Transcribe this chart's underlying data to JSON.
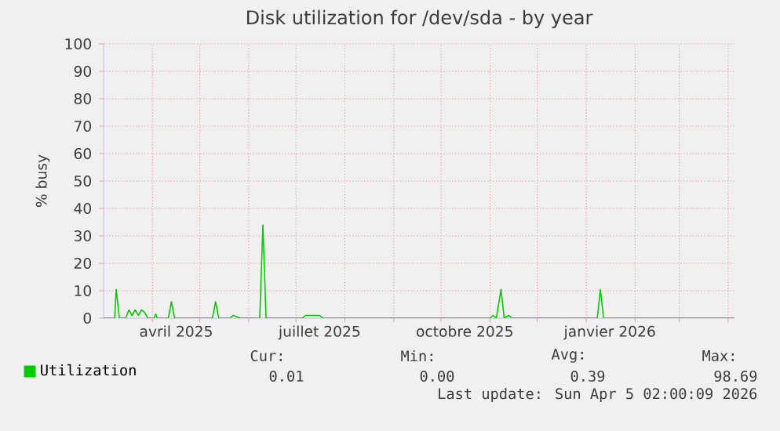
{
  "chart_data": {
    "type": "line",
    "title": "Disk utilization for /dev/sda - by year",
    "ylabel": "% busy",
    "x": [
      "2025-03-01",
      "2025-03-08",
      "2025-03-09",
      "2025-03-11",
      "2025-03-15",
      "2025-03-17",
      "2025-03-19",
      "2025-03-21",
      "2025-03-23",
      "2025-03-25",
      "2025-03-27",
      "2025-03-29",
      "2025-04-02",
      "2025-04-03",
      "2025-04-04",
      "2025-04-11",
      "2025-04-13",
      "2025-04-15",
      "2025-05-09",
      "2025-05-11",
      "2025-05-13",
      "2025-05-20",
      "2025-05-22",
      "2025-05-27",
      "2025-06-08",
      "2025-06-10",
      "2025-06-12",
      "2025-07-05",
      "2025-07-07",
      "2025-07-16",
      "2025-07-18",
      "2025-11-01",
      "2025-11-03",
      "2025-11-05",
      "2025-11-08",
      "2025-11-10",
      "2025-11-13",
      "2025-11-15",
      "2026-01-08",
      "2026-01-10",
      "2026-01-12",
      "2026-04-05"
    ],
    "series": [
      {
        "name": "Utilization",
        "color": "#00cc00",
        "values": [
          0,
          0,
          10.5,
          0,
          0,
          3,
          1,
          3,
          1,
          3,
          2,
          0,
          0,
          1.5,
          0,
          0,
          6,
          0,
          0,
          6,
          0,
          0,
          1,
          0,
          0,
          34,
          0,
          0,
          1,
          1,
          0,
          0,
          1,
          0,
          10.5,
          0,
          1,
          0,
          0,
          10.5,
          0,
          0
        ]
      }
    ],
    "xlim": [
      "2025-03-01",
      "2026-04-05"
    ],
    "xticks": [
      {
        "value": "2025-04-01",
        "label": null
      },
      {
        "value": "2025-04-16",
        "label": "avril 2025"
      },
      {
        "value": "2025-05-01",
        "label": null
      },
      {
        "value": "2025-06-01",
        "label": null
      },
      {
        "value": "2025-07-01",
        "label": null
      },
      {
        "value": "2025-07-16",
        "label": "juillet 2025"
      },
      {
        "value": "2025-08-01",
        "label": null
      },
      {
        "value": "2025-09-01",
        "label": null
      },
      {
        "value": "2025-10-01",
        "label": null
      },
      {
        "value": "2025-10-16",
        "label": "octobre 2025"
      },
      {
        "value": "2025-11-01",
        "label": null
      },
      {
        "value": "2025-12-01",
        "label": null
      },
      {
        "value": "2026-01-01",
        "label": null
      },
      {
        "value": "2026-01-16",
        "label": "janvier 2026"
      },
      {
        "value": "2026-02-01",
        "label": null
      },
      {
        "value": "2026-03-01",
        "label": null
      },
      {
        "value": "2026-04-01",
        "label": null
      }
    ],
    "ylim": [
      0,
      100
    ],
    "yticks": [
      0,
      10,
      20,
      30,
      40,
      50,
      60,
      70,
      80,
      90,
      100
    ],
    "grid": true,
    "legend": "bottom left",
    "marker": "none",
    "line_style": "solid",
    "annotations": [
      "Cur:",
      "Min:",
      "Avg:",
      "Max:",
      "0.01",
      "0.00",
      "0.39",
      "98.69",
      "Last update: Sun Apr  5 02:00:09 2026"
    ]
  }
}
